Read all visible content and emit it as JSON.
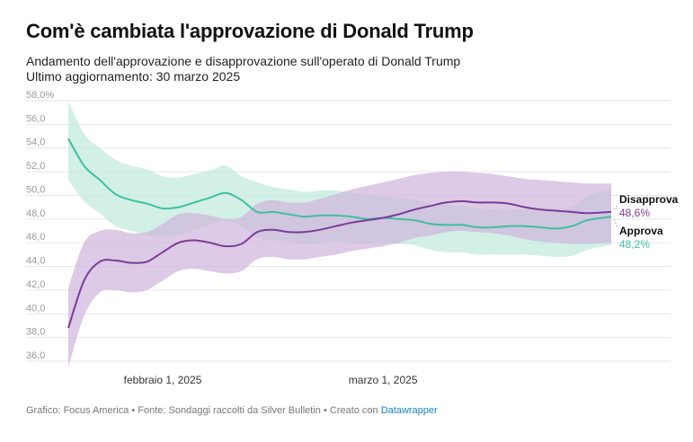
{
  "title": "Com'è cambiata l'approvazione di Donald Trump",
  "subtitle": "Andamento dell'approvazione e disapprovazione sull'operato di Donald Trump",
  "updated": "Ultimo aggiornamento: 30 marzo 2025",
  "footer": {
    "text": "Grafico: Focus America • Fonte: Sondaggi raccolti da Silver Bulletin • Creato con ",
    "link": "Datawrapper"
  },
  "colors": {
    "approve_line": "#3fbf9f",
    "approve_band": "#bfe9dc",
    "disapprove_line": "#7b3b98",
    "disapprove_band": "#cfb4db",
    "grid": "#e6e6e6"
  },
  "chart_data": {
    "type": "line",
    "y_unit": "%",
    "ylim": [
      36,
      58
    ],
    "yticks": [
      "58,0%",
      "56,0",
      "54,0",
      "52,0",
      "50,0",
      "48,0",
      "46,0",
      "44,0",
      "42,0",
      "40,0",
      "38,0",
      "36,0"
    ],
    "ytick_values": [
      58,
      56,
      54,
      52,
      50,
      48,
      46,
      44,
      42,
      40,
      38,
      36
    ],
    "xlim": [
      "2025-01-20",
      "2025-03-30"
    ],
    "xticks": [
      {
        "date": "2025-02-01",
        "label": "febbraio 1, 2025"
      },
      {
        "date": "2025-03-01",
        "label": "marzo 1, 2025"
      }
    ],
    "grid": true,
    "x": [
      "2025-01-20",
      "2025-01-22",
      "2025-01-24",
      "2025-01-26",
      "2025-01-28",
      "2025-01-30",
      "2025-02-01",
      "2025-02-03",
      "2025-02-05",
      "2025-02-07",
      "2025-02-09",
      "2025-02-11",
      "2025-02-13",
      "2025-02-15",
      "2025-02-17",
      "2025-02-19",
      "2025-02-21",
      "2025-02-23",
      "2025-02-25",
      "2025-02-27",
      "2025-03-01",
      "2025-03-03",
      "2025-03-05",
      "2025-03-07",
      "2025-03-09",
      "2025-03-11",
      "2025-03-13",
      "2025-03-15",
      "2025-03-17",
      "2025-03-19",
      "2025-03-21",
      "2025-03-23",
      "2025-03-25",
      "2025-03-27",
      "2025-03-30"
    ],
    "series": [
      {
        "name": "Approva",
        "label_value": "48,2%",
        "values": [
          54.8,
          52.5,
          51.3,
          50.1,
          49.6,
          49.3,
          48.9,
          49.0,
          49.4,
          49.8,
          50.2,
          49.6,
          48.6,
          48.6,
          48.4,
          48.2,
          48.3,
          48.3,
          48.2,
          48.0,
          48.1,
          48.0,
          47.9,
          47.6,
          47.5,
          47.5,
          47.3,
          47.3,
          47.4,
          47.4,
          47.3,
          47.2,
          47.4,
          47.9,
          48.2
        ],
        "upper": [
          58.0,
          55.2,
          54.0,
          53.0,
          52.5,
          52.2,
          51.6,
          51.5,
          51.8,
          52.1,
          52.5,
          51.6,
          51.1,
          50.7,
          50.5,
          50.3,
          50.4,
          50.4,
          50.2,
          50.0,
          49.9,
          49.8,
          49.6,
          49.3,
          49.2,
          49.1,
          48.9,
          48.8,
          48.8,
          48.8,
          48.8,
          48.8,
          49.1,
          49.9,
          50.6
        ],
        "lower": [
          51.3,
          49.5,
          48.5,
          47.4,
          47.0,
          46.6,
          46.5,
          46.7,
          47.1,
          47.5,
          47.9,
          47.4,
          46.4,
          46.2,
          46.1,
          45.9,
          46.0,
          46.1,
          46.0,
          45.9,
          46.0,
          45.9,
          45.8,
          45.4,
          45.2,
          45.2,
          45.0,
          45.0,
          45.0,
          45.0,
          44.9,
          44.8,
          44.9,
          45.4,
          45.8
        ]
      },
      {
        "name": "Disapprova",
        "label_value": "48,6%",
        "values": [
          38.8,
          42.8,
          44.4,
          44.5,
          44.3,
          44.4,
          45.2,
          46.0,
          46.2,
          46.0,
          45.7,
          45.9,
          46.9,
          47.1,
          46.9,
          46.9,
          47.1,
          47.4,
          47.7,
          47.9,
          48.1,
          48.4,
          48.8,
          49.1,
          49.4,
          49.5,
          49.4,
          49.4,
          49.3,
          49.0,
          48.8,
          48.7,
          48.6,
          48.5,
          48.6
        ],
        "upper": [
          42.2,
          46.0,
          47.0,
          47.1,
          46.8,
          46.9,
          47.6,
          48.4,
          48.5,
          48.3,
          48.0,
          48.2,
          49.3,
          49.6,
          49.4,
          49.4,
          49.7,
          50.1,
          50.5,
          50.8,
          51.1,
          51.4,
          51.7,
          51.9,
          52.0,
          52.0,
          51.9,
          51.8,
          51.6,
          51.4,
          51.3,
          51.2,
          51.1,
          51.0,
          51.0
        ],
        "lower": [
          35.5,
          39.8,
          41.8,
          42.0,
          41.8,
          42.0,
          42.8,
          43.6,
          43.8,
          43.6,
          43.4,
          43.6,
          44.6,
          44.8,
          44.6,
          44.6,
          44.8,
          45.0,
          45.3,
          45.5,
          45.7,
          46.0,
          46.4,
          46.6,
          46.9,
          47.0,
          46.9,
          46.8,
          46.6,
          46.3,
          46.1,
          46.0,
          45.9,
          45.9,
          46.0
        ]
      }
    ]
  }
}
